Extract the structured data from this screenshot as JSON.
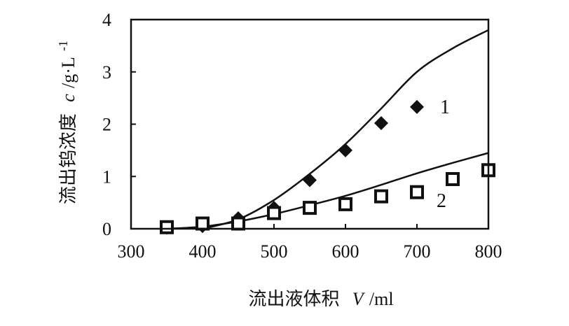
{
  "chart_data": {
    "type": "scatter",
    "xlabel_prefix": "流出液体积",
    "xlabel_var": "V",
    "xlabel_unit": "/ml",
    "ylabel_prefix": "流出钨浓度",
    "ylabel_var": "c",
    "ylabel_unit": "/g·L",
    "ylabel_exponent": "-1",
    "xlim": [
      300,
      800
    ],
    "ylim": [
      0,
      4
    ],
    "x_ticks": [
      300,
      400,
      500,
      600,
      700,
      800
    ],
    "y_ticks": [
      0,
      1,
      2,
      3,
      4
    ],
    "grid": false,
    "series": [
      {
        "label": "1",
        "marker": "diamond",
        "points": [
          [
            350,
            0.02
          ],
          [
            400,
            0.05
          ],
          [
            450,
            0.2
          ],
          [
            500,
            0.4
          ],
          [
            550,
            0.93
          ],
          [
            600,
            1.5
          ],
          [
            650,
            2.02
          ],
          [
            700,
            2.33
          ]
        ],
        "fit": [
          [
            400,
            0.0
          ],
          [
            450,
            0.18
          ],
          [
            500,
            0.55
          ],
          [
            550,
            1.05
          ],
          [
            600,
            1.62
          ],
          [
            650,
            2.3
          ],
          [
            700,
            3.0
          ],
          [
            750,
            3.45
          ],
          [
            800,
            3.8
          ]
        ]
      },
      {
        "label": "2",
        "marker": "square",
        "points": [
          [
            350,
            0.03
          ],
          [
            400,
            0.1
          ],
          [
            450,
            0.1
          ],
          [
            500,
            0.3
          ],
          [
            550,
            0.4
          ],
          [
            600,
            0.47
          ],
          [
            650,
            0.62
          ],
          [
            700,
            0.7
          ],
          [
            750,
            0.95
          ],
          [
            800,
            1.12
          ]
        ],
        "fit": [
          [
            350,
            0.0
          ],
          [
            400,
            0.04
          ],
          [
            450,
            0.14
          ],
          [
            500,
            0.28
          ],
          [
            550,
            0.45
          ],
          [
            600,
            0.63
          ],
          [
            650,
            0.84
          ],
          [
            700,
            1.06
          ],
          [
            750,
            1.26
          ],
          [
            800,
            1.45
          ]
        ]
      }
    ]
  }
}
